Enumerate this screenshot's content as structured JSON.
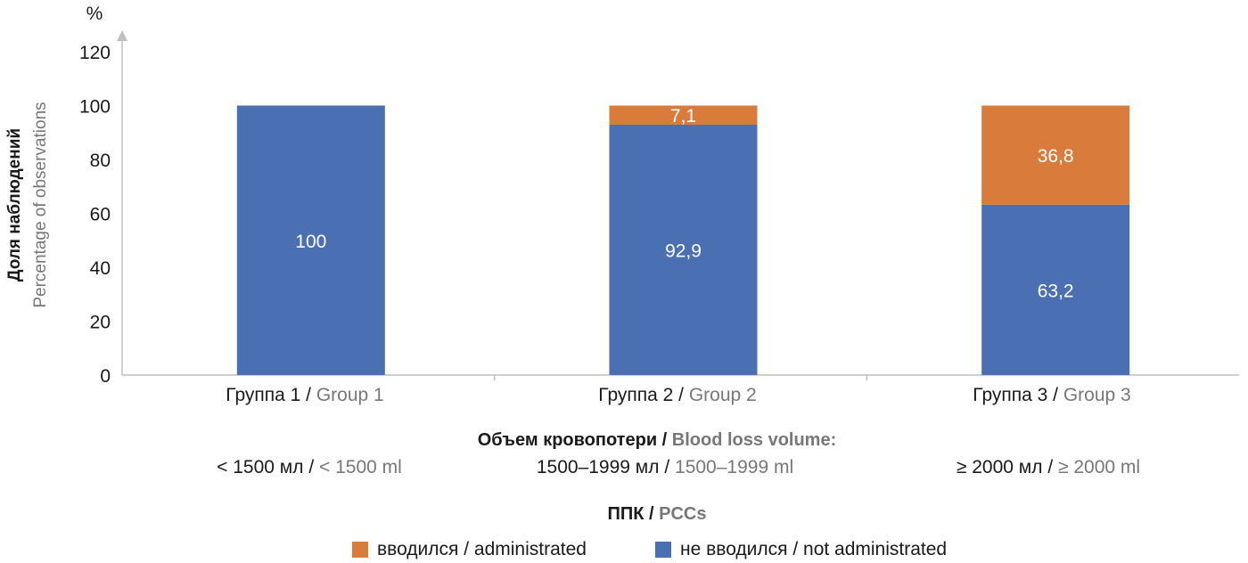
{
  "colors": {
    "blue": "#4a6fb3",
    "orange": "#d97b3a",
    "axis": "#bfbfbf",
    "gray_text": "#777777"
  },
  "chart_data": {
    "type": "bar",
    "stacked": true,
    "unit_label": "%",
    "ylabel_ru": "Доля наблюдений",
    "ylabel_en": "Percentage of observations",
    "ylim": [
      0,
      120
    ],
    "yticks": [
      "0",
      "20",
      "40",
      "60",
      "80",
      "100",
      "120"
    ],
    "categories": [
      {
        "ru": "Группа 1",
        "sep": " / ",
        "en": "Group 1"
      },
      {
        "ru": "Группа 2",
        "sep": " / ",
        "en": "Group 2"
      },
      {
        "ru": "Группа 3",
        "sep": " / ",
        "en": "Group 3"
      }
    ],
    "series": [
      {
        "key": "not_administered",
        "name": "не вводился / not administrated",
        "color": "#4a6fb3",
        "values": [
          100,
          92.9,
          63.2
        ],
        "labels": [
          "100",
          "92,9",
          "63,2"
        ]
      },
      {
        "key": "administered",
        "name": "вводился / administrated",
        "color": "#d97b3a",
        "values": [
          0,
          7.1,
          36.8
        ],
        "labels": [
          "",
          "7,1",
          "36,8"
        ]
      }
    ],
    "xlabel_ru": "Объем кровопотери / ",
    "xlabel_en": "Blood loss volume:",
    "ranges": [
      {
        "ru": "< 1500 мл",
        "sep": " / ",
        "en": "< 1500 ml"
      },
      {
        "ru": "1500–1999 мл",
        "sep": " / ",
        "en": "1500–1999 ml"
      },
      {
        "ru": "≥ 2000 мл",
        "sep": " / ",
        "en": "≥ 2000 ml"
      }
    ],
    "legend_title_ru": "ППК / ",
    "legend_title_en": "PCCs",
    "legend": [
      {
        "label": "вводился / administrated",
        "color": "#d97b3a"
      },
      {
        "label": "не вводился / not administrated",
        "color": "#4a6fb3"
      }
    ]
  }
}
